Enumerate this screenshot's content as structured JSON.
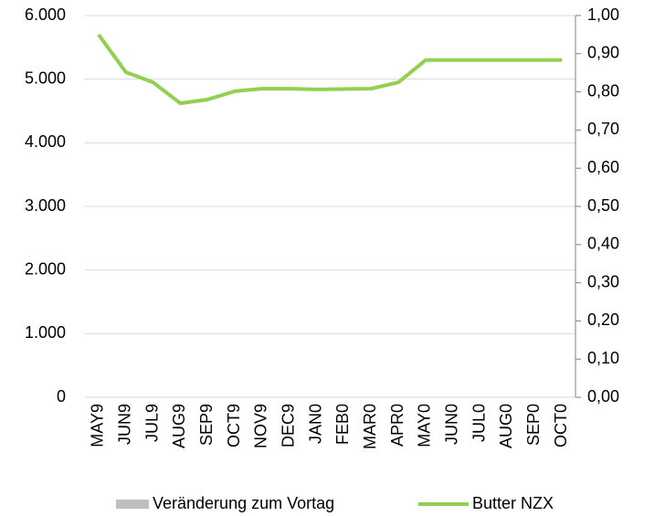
{
  "chart_data": {
    "type": "line",
    "categories": [
      "MAY9",
      "JUN9",
      "JUL9",
      "AUG9",
      "SEP9",
      "OCT9",
      "NOV9",
      "DEC9",
      "JAN0",
      "FEB0",
      "MAR0",
      "APR0",
      "MAY0",
      "JUN0",
      "JUL0",
      "AUG0",
      "SEP0",
      "OCT0"
    ],
    "series": [
      {
        "name": "Veränderung zum Vortag",
        "color": "#bfbfbf",
        "axis": "y2",
        "type": "bar",
        "values": [
          null,
          null,
          null,
          null,
          null,
          null,
          null,
          null,
          null,
          null,
          null,
          null,
          null,
          null,
          null,
          null,
          null,
          null
        ]
      },
      {
        "name": "Butter NZX",
        "color": "#92d050",
        "values": [
          5700,
          5110,
          4950,
          4620,
          4680,
          4810,
          4850,
          4850,
          4840,
          4845,
          4850,
          4950,
          5300,
          5300,
          5300,
          5300,
          5300,
          5300
        ]
      }
    ],
    "ylim": [
      0,
      6000
    ],
    "yticks": [
      {
        "value": 0,
        "label": "0"
      },
      {
        "value": 1000,
        "label": "1.000"
      },
      {
        "value": 2000,
        "label": "2.000"
      },
      {
        "value": 3000,
        "label": "3.000"
      },
      {
        "value": 4000,
        "label": "4.000"
      },
      {
        "value": 5000,
        "label": "5.000"
      },
      {
        "value": 6000,
        "label": "6.000"
      }
    ],
    "y2lim": [
      0,
      1
    ],
    "y2ticks": [
      {
        "value": 0,
        "label": "0,00"
      },
      {
        "value": 0.1,
        "label": "0,10"
      },
      {
        "value": 0.2,
        "label": "0,20"
      },
      {
        "value": 0.3,
        "label": "0,30"
      },
      {
        "value": 0.4,
        "label": "0,40"
      },
      {
        "value": 0.5,
        "label": "0,50"
      },
      {
        "value": 0.6,
        "label": "0,60"
      },
      {
        "value": 0.7,
        "label": "0,70"
      },
      {
        "value": 0.8,
        "label": "0,80"
      },
      {
        "value": 0.9,
        "label": "0,90"
      },
      {
        "value": 1,
        "label": "1,00"
      }
    ],
    "y2color": "#1a9a1a",
    "grid": true,
    "legend": "bottom"
  }
}
